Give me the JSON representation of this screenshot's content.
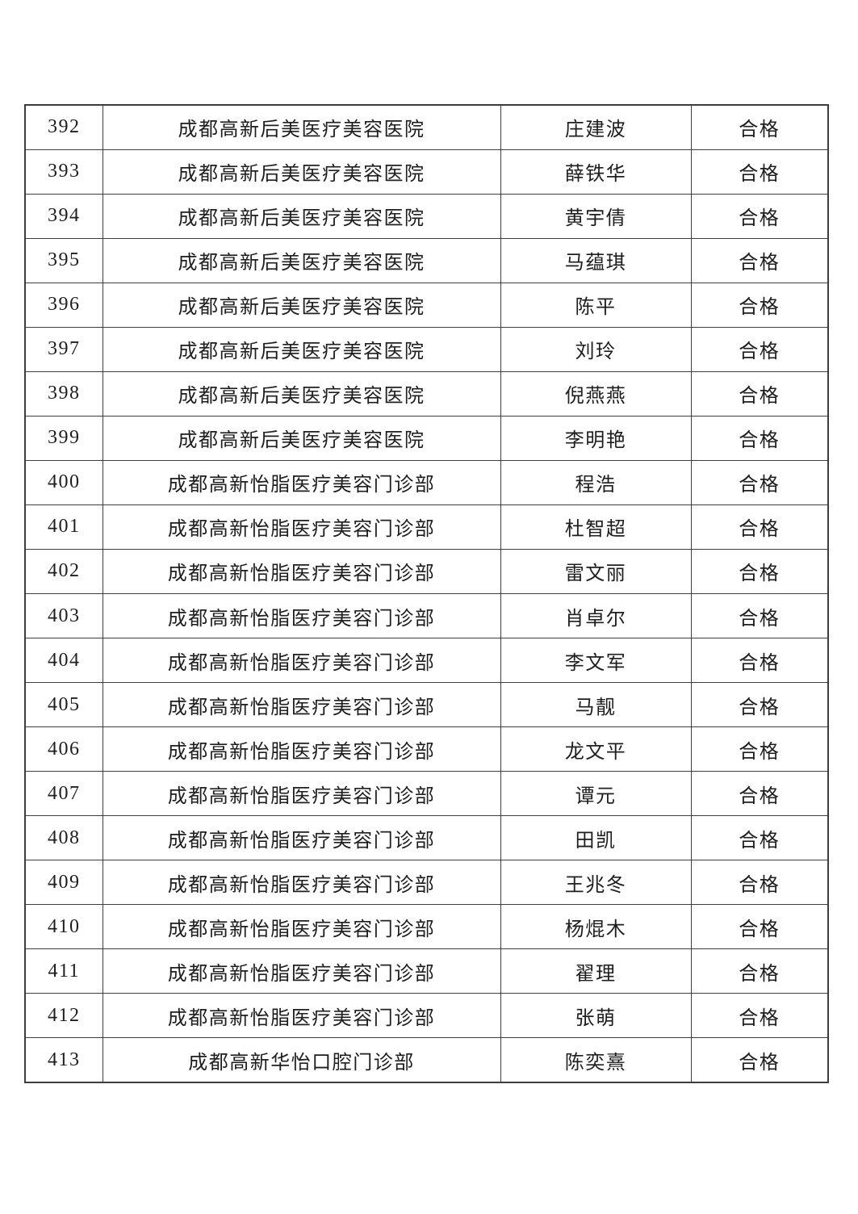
{
  "colors": {
    "page_background": "#ffffff",
    "border": "#3d3d3d",
    "text": "#1e1e1e"
  },
  "table": {
    "result_pass_label": "合格",
    "institutions": [
      "成都高新后美医疗美容医院",
      "成都高新怡脂医疗美容门诊部",
      "成都高新华怡口腔门诊部"
    ],
    "rows": [
      {
        "index": "392",
        "institution": "成都高新后美医疗美容医院",
        "name": "庄建波",
        "result": "合格"
      },
      {
        "index": "393",
        "institution": "成都高新后美医疗美容医院",
        "name": "薛铁华",
        "result": "合格"
      },
      {
        "index": "394",
        "institution": "成都高新后美医疗美容医院",
        "name": "黄宇倩",
        "result": "合格"
      },
      {
        "index": "395",
        "institution": "成都高新后美医疗美容医院",
        "name": "马蕴琪",
        "result": "合格"
      },
      {
        "index": "396",
        "institution": "成都高新后美医疗美容医院",
        "name": "陈平",
        "result": "合格"
      },
      {
        "index": "397",
        "institution": "成都高新后美医疗美容医院",
        "name": "刘玲",
        "result": "合格"
      },
      {
        "index": "398",
        "institution": "成都高新后美医疗美容医院",
        "name": "倪燕燕",
        "result": "合格"
      },
      {
        "index": "399",
        "institution": "成都高新后美医疗美容医院",
        "name": "李明艳",
        "result": "合格"
      },
      {
        "index": "400",
        "institution": "成都高新怡脂医疗美容门诊部",
        "name": "程浩",
        "result": "合格"
      },
      {
        "index": "401",
        "institution": "成都高新怡脂医疗美容门诊部",
        "name": "杜智超",
        "result": "合格"
      },
      {
        "index": "402",
        "institution": "成都高新怡脂医疗美容门诊部",
        "name": "雷文丽",
        "result": "合格"
      },
      {
        "index": "403",
        "institution": "成都高新怡脂医疗美容门诊部",
        "name": "肖卓尔",
        "result": "合格"
      },
      {
        "index": "404",
        "institution": "成都高新怡脂医疗美容门诊部",
        "name": "李文军",
        "result": "合格"
      },
      {
        "index": "405",
        "institution": "成都高新怡脂医疗美容门诊部",
        "name": "马靓",
        "result": "合格"
      },
      {
        "index": "406",
        "institution": "成都高新怡脂医疗美容门诊部",
        "name": "龙文平",
        "result": "合格"
      },
      {
        "index": "407",
        "institution": "成都高新怡脂医疗美容门诊部",
        "name": "谭元",
        "result": "合格"
      },
      {
        "index": "408",
        "institution": "成都高新怡脂医疗美容门诊部",
        "name": "田凯",
        "result": "合格"
      },
      {
        "index": "409",
        "institution": "成都高新怡脂医疗美容门诊部",
        "name": "王兆冬",
        "result": "合格"
      },
      {
        "index": "410",
        "institution": "成都高新怡脂医疗美容门诊部",
        "name": "杨焜木",
        "result": "合格"
      },
      {
        "index": "411",
        "institution": "成都高新怡脂医疗美容门诊部",
        "name": "翟理",
        "result": "合格"
      },
      {
        "index": "412",
        "institution": "成都高新怡脂医疗美容门诊部",
        "name": "张萌",
        "result": "合格"
      },
      {
        "index": "413",
        "institution": "成都高新华怡口腔门诊部",
        "name": "陈奕熹",
        "result": "合格"
      }
    ]
  }
}
